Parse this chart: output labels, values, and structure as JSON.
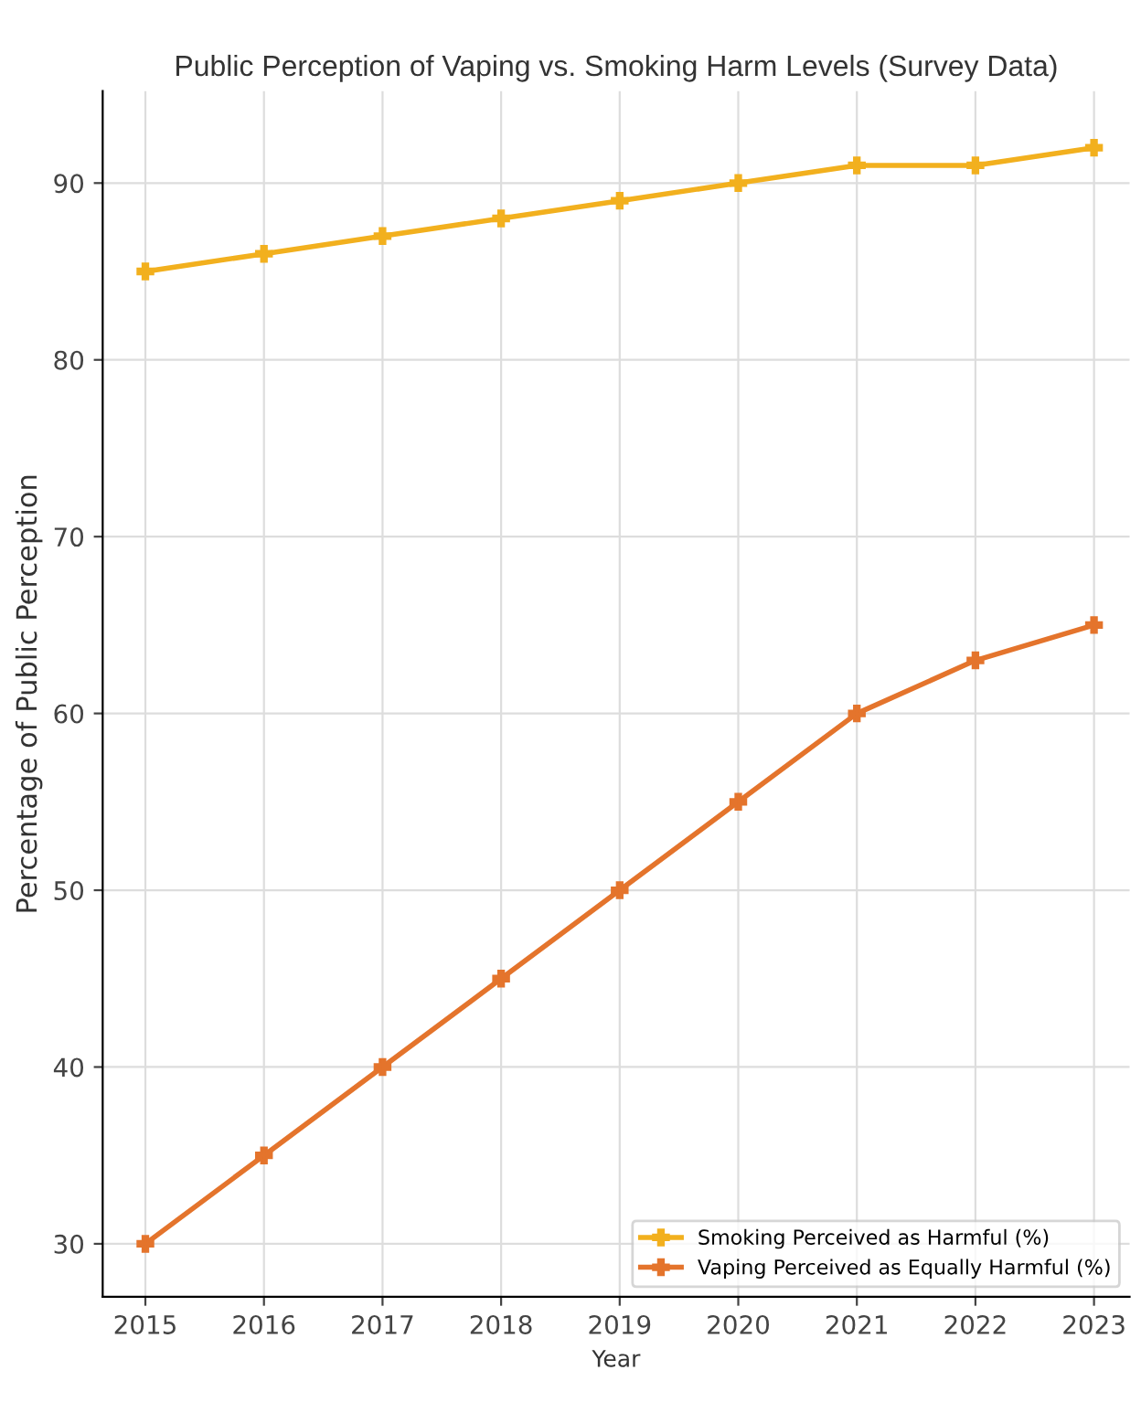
{
  "chart_data": {
    "type": "line",
    "title": "Public Perception of Vaping vs. Smoking Harm Levels (Survey Data)",
    "xlabel": "Year",
    "ylabel": "Percentage of Public Perception",
    "x": [
      2015,
      2016,
      2017,
      2018,
      2019,
      2020,
      2021,
      2022,
      2023
    ],
    "series": [
      {
        "name": "Smoking Perceived as Harmful (%)",
        "color": "#f2b01e",
        "values": [
          85,
          86,
          87,
          88,
          89,
          90,
          91,
          91,
          92
        ]
      },
      {
        "name": "Vaping Perceived as Equally Harmful (%)",
        "color": "#e4742c",
        "values": [
          30,
          35,
          40,
          45,
          50,
          55,
          60,
          63,
          65
        ]
      }
    ],
    "xlim": [
      2014.64,
      2023.3
    ],
    "xticks": [
      2015,
      2016,
      2017,
      2018,
      2019,
      2020,
      2021,
      2022,
      2023
    ],
    "ylim": [
      27,
      95.2
    ],
    "yticks": [
      30,
      40,
      50,
      60,
      70,
      80,
      90
    ],
    "grid": true,
    "legend": "bottom right",
    "marker": "cross",
    "line_style": "solid"
  }
}
